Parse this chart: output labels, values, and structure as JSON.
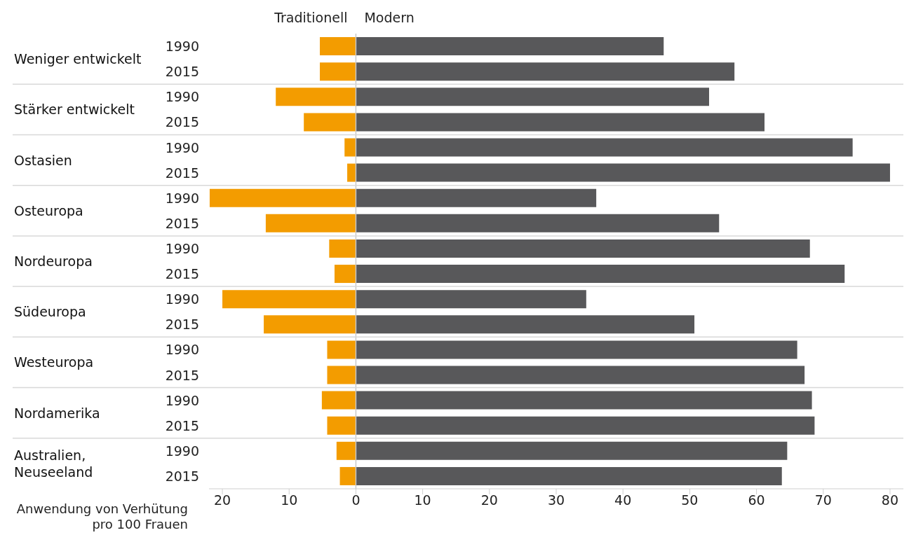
{
  "chart_data": {
    "type": "bar",
    "orientation": "horizontal",
    "stacked": true,
    "categories": [
      "1990",
      "2015",
      "1990",
      "2015",
      "1990",
      "2015",
      "1990",
      "2015",
      "1990",
      "2015",
      "1990",
      "2015",
      "1990",
      "2015",
      "1990",
      "2015",
      "1990",
      "2015"
    ],
    "series": [
      {
        "name": "Traditionell",
        "color": "#f39c00",
        "values": [
          -5.4,
          -5.4,
          -12.0,
          -7.8,
          -1.7,
          -1.3,
          -21.9,
          -13.5,
          -4.0,
          -3.2,
          -20.0,
          -13.8,
          -4.3,
          -4.3,
          -5.1,
          -4.3,
          -2.9,
          -2.4
        ]
      },
      {
        "name": "Modern",
        "color": "#58585a",
        "values": [
          46.1,
          56.7,
          52.9,
          61.2,
          74.4,
          80,
          36.0,
          54.4,
          68.0,
          73.2,
          34.5,
          50.7,
          66.1,
          67.2,
          68.3,
          68.7,
          64.6,
          63.8
        ]
      }
    ],
    "annotations": [
      "Weniger entwickelt",
      "Stärker entwickelt",
      "Ostasien",
      "Osteuropa",
      "Nordeuropa",
      "Südeuropa",
      "Westeuropa",
      "Nordamerika",
      "Australien, Neuseeland"
    ],
    "xlabel": "Anwendung von Verhütung pro 100 Frauen",
    "xlim": [
      -22,
      82
    ],
    "xticks": [
      {
        "value": -20,
        "label": "20"
      },
      {
        "value": -10,
        "label": "10"
      },
      0,
      10,
      20,
      30,
      40,
      50,
      60,
      70,
      80
    ],
    "ref_lines": [
      {
        "axis": "x",
        "value": 0,
        "color": "#c8c8c8"
      }
    ],
    "legend": "top"
  }
}
